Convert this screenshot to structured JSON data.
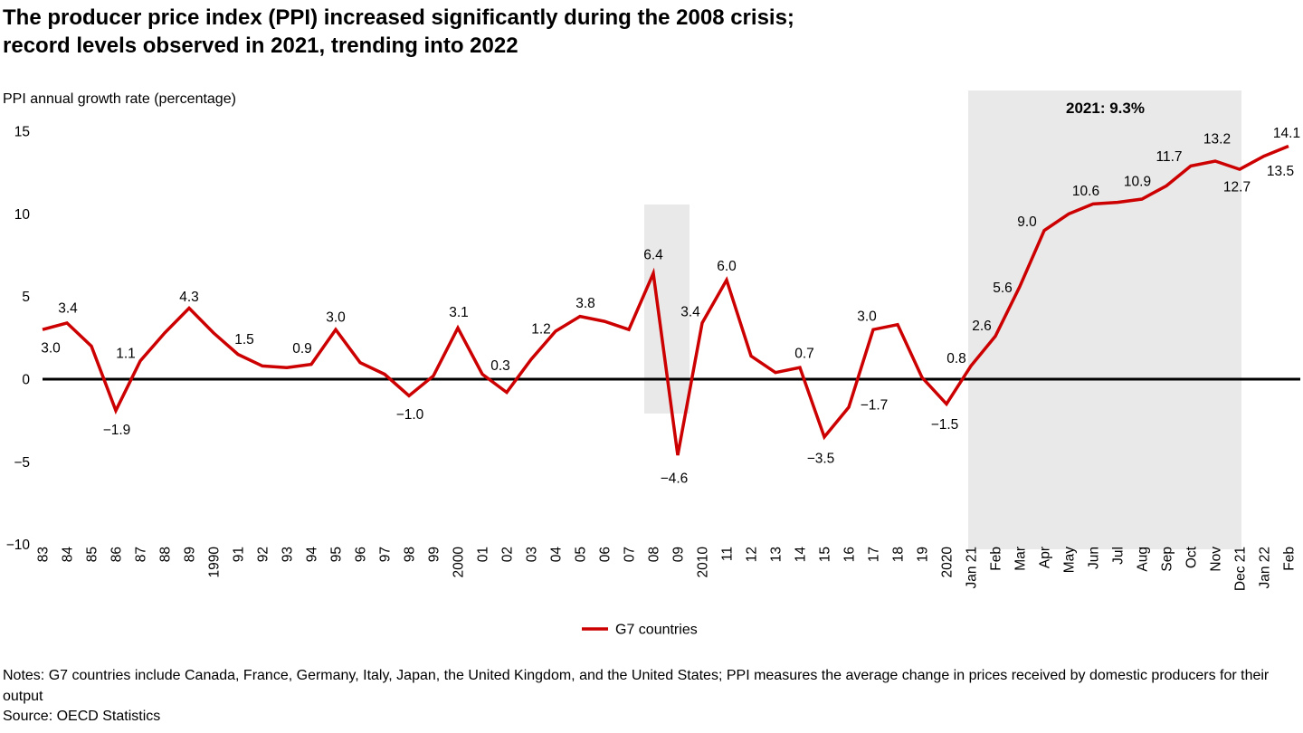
{
  "chart_data": {
    "type": "line",
    "title": "The producer price index (PPI) increased significantly during the 2008 crisis;\nrecord levels observed in 2021, trending into 2022",
    "ylabel": "PPI annual growth rate (percentage)",
    "grid": false,
    "y_axis": {
      "ticks": [
        15,
        10,
        5,
        0,
        -5,
        -10
      ],
      "range": [
        -10,
        15
      ]
    },
    "categories": [
      "83",
      "84",
      "85",
      "86",
      "87",
      "88",
      "89",
      "1990",
      "91",
      "92",
      "93",
      "94",
      "95",
      "96",
      "97",
      "98",
      "99",
      "2000",
      "01",
      "02",
      "03",
      "04",
      "05",
      "06",
      "07",
      "08",
      "09",
      "2010",
      "11",
      "12",
      "13",
      "14",
      "15",
      "16",
      "17",
      "18",
      "19",
      "2020",
      "Jan 21",
      "Feb",
      "Mar",
      "Apr",
      "May",
      "Jun",
      "Jul",
      "Aug",
      "Sep",
      "Oct",
      "Nov",
      "Dec 21",
      "Jan 22",
      "Feb"
    ],
    "series": [
      {
        "name": "G7 countries",
        "color": "#cc0000",
        "values": [
          3.0,
          3.4,
          2.0,
          -1.9,
          1.1,
          2.8,
          4.3,
          2.8,
          1.5,
          0.8,
          0.7,
          0.9,
          3.0,
          1.0,
          0.3,
          -1.0,
          0.2,
          3.1,
          0.3,
          -0.8,
          1.2,
          2.9,
          3.8,
          3.5,
          3.0,
          6.4,
          -4.6,
          3.4,
          6.0,
          1.4,
          0.4,
          0.7,
          -3.5,
          -1.7,
          3.0,
          3.3,
          0.1,
          -1.5,
          0.8,
          2.6,
          5.6,
          9.0,
          10.0,
          10.6,
          10.7,
          10.9,
          11.7,
          12.9,
          13.2,
          12.7,
          13.5,
          14.1
        ]
      }
    ],
    "point_labels": [
      {
        "index": 0,
        "text": "3.0"
      },
      {
        "index": 1,
        "text": "3.4"
      },
      {
        "index": 3,
        "text": "−1.9"
      },
      {
        "index": 4,
        "text": "1.1"
      },
      {
        "index": 6,
        "text": "4.3"
      },
      {
        "index": 8,
        "text": "1.5"
      },
      {
        "index": 11,
        "text": "0.9"
      },
      {
        "index": 12,
        "text": "3.0"
      },
      {
        "index": 15,
        "text": "−1.0"
      },
      {
        "index": 17,
        "text": "3.1"
      },
      {
        "index": 18,
        "text": "0.3"
      },
      {
        "index": 20,
        "text": "1.2"
      },
      {
        "index": 22,
        "text": "3.8"
      },
      {
        "index": 25,
        "text": "6.4"
      },
      {
        "index": 26,
        "text": "−4.6"
      },
      {
        "index": 27,
        "text": "3.4"
      },
      {
        "index": 28,
        "text": "6.0"
      },
      {
        "index": 31,
        "text": "0.7"
      },
      {
        "index": 32,
        "text": "−3.5"
      },
      {
        "index": 33,
        "text": "−1.7"
      },
      {
        "index": 34,
        "text": "3.0"
      },
      {
        "index": 37,
        "text": "−1.5"
      },
      {
        "index": 38,
        "text": "0.8"
      },
      {
        "index": 39,
        "text": "2.6"
      },
      {
        "index": 40,
        "text": "5.6"
      },
      {
        "index": 41,
        "text": "9.0"
      },
      {
        "index": 43,
        "text": "10.6"
      },
      {
        "index": 45,
        "text": "10.9"
      },
      {
        "index": 46,
        "text": "11.7"
      },
      {
        "index": 48,
        "text": "13.2"
      },
      {
        "index": 49,
        "text": "12.7"
      },
      {
        "index": 50,
        "text": "13.5"
      },
      {
        "index": 51,
        "text": "14.1"
      }
    ],
    "highlight_regions": [
      {
        "from": "08",
        "to": "09",
        "label": ""
      },
      {
        "from": "Jan 21",
        "to": "Dec 21",
        "label": "2021: 9.3%"
      }
    ],
    "highlight_color": "#e9e9e9",
    "legend_position": "bottom-center"
  },
  "notes": "Notes: G7 countries include Canada, France, Germany, Italy, Japan, the United Kingdom, and the United States; PPI measures the average change in prices received by domestic producers for their output",
  "source": "Source: OECD Statistics"
}
